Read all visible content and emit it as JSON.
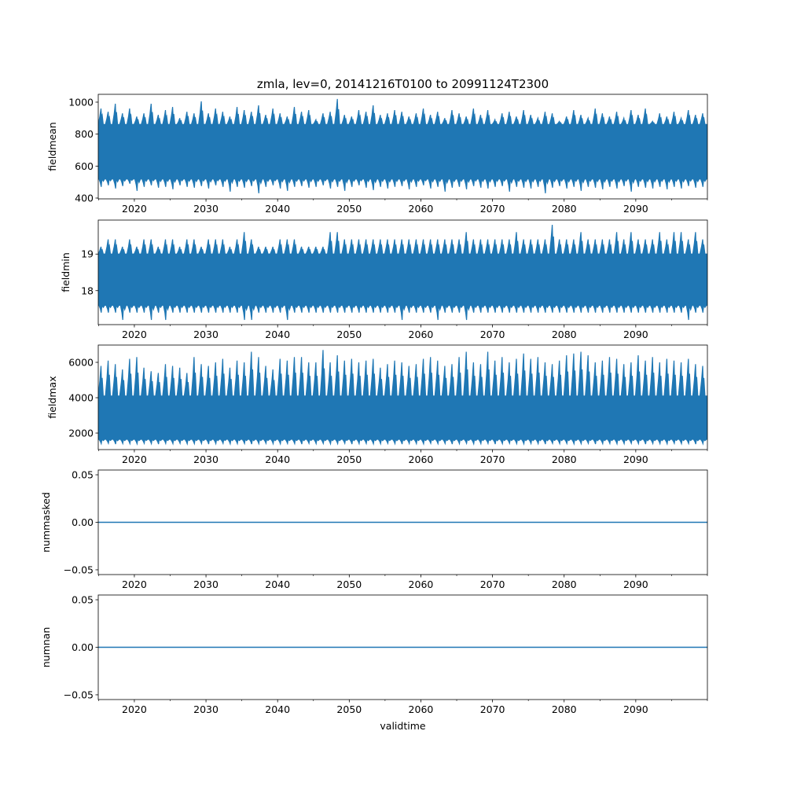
{
  "chart_data": [
    {
      "type": "line",
      "title": "zmla, lev=0, 20141216T0100 to 20991124T2300",
      "ylabel": "fieldmean",
      "xlabel": "",
      "xlim": [
        2014.96,
        2100.0
      ],
      "ylim": [
        395,
        1049
      ],
      "y_ticks": [
        {
          "v": 400,
          "label": "400"
        },
        {
          "v": 600,
          "label": "600"
        },
        {
          "v": 800,
          "label": "800"
        },
        {
          "v": 1000,
          "label": "1000"
        }
      ],
      "envelope": {
        "start_year": 2015,
        "core_high": 860,
        "core_low": 520,
        "annual_max": [
          960,
          940,
          990,
          930,
          960,
          910,
          930,
          990,
          920,
          950,
          970,
          900,
          940,
          930,
          1005,
          930,
          960,
          940,
          910,
          970,
          950,
          940,
          980,
          920,
          960,
          930,
          910,
          970,
          940,
          950,
          890,
          930,
          940,
          1020,
          920,
          910,
          950,
          940,
          980,
          920,
          930,
          950,
          940,
          910,
          930,
          960,
          920,
          940,
          900,
          950,
          930,
          910,
          960,
          920,
          950,
          890,
          930,
          940,
          910,
          950,
          920,
          900,
          940,
          930,
          880,
          910,
          950,
          920,
          900,
          960,
          930,
          910,
          940,
          900,
          950,
          920,
          960,
          880,
          930,
          910,
          940,
          900,
          950,
          920,
          930
        ],
        "annual_min": [
          470,
          480,
          460,
          475,
          490,
          445,
          470,
          480,
          465,
          470,
          455,
          480,
          470,
          465,
          475,
          460,
          480,
          470,
          440,
          470,
          465,
          475,
          430,
          470,
          480,
          460,
          445,
          470,
          475,
          465,
          470,
          480,
          460,
          470,
          445,
          470,
          480,
          465,
          450,
          470,
          460,
          470,
          475,
          455,
          470,
          480,
          460,
          470,
          440,
          465,
          470,
          455,
          475,
          465,
          460,
          470,
          475,
          440,
          470,
          465,
          460,
          470,
          430,
          465,
          475,
          460,
          470,
          445,
          470,
          465,
          455,
          470,
          460,
          475,
          440,
          470,
          465,
          460,
          470,
          455,
          470,
          460,
          475,
          465,
          470
        ]
      }
    },
    {
      "type": "line",
      "ylabel": "fieldmin",
      "xlim": [
        2014.96,
        2100.0
      ],
      "ylim": [
        17.07,
        19.93
      ],
      "y_ticks": [
        {
          "v": 18,
          "label": "18"
        },
        {
          "v": 19,
          "label": "19"
        }
      ],
      "envelope": {
        "start_year": 2015,
        "core_high": 19.0,
        "core_low": 17.6,
        "annual_max": [
          19.2,
          19.4,
          19.4,
          19.2,
          19.4,
          19.2,
          19.4,
          19.4,
          19.2,
          19.4,
          19.4,
          19.2,
          19.4,
          19.4,
          19.2,
          19.4,
          19.4,
          19.4,
          19.2,
          19.4,
          19.6,
          19.4,
          19.2,
          19.2,
          19.2,
          19.4,
          19.4,
          19.4,
          19.2,
          19.2,
          19.2,
          19.2,
          19.6,
          19.6,
          19.4,
          19.4,
          19.4,
          19.4,
          19.4,
          19.4,
          19.4,
          19.4,
          19.4,
          19.4,
          19.4,
          19.4,
          19.4,
          19.4,
          19.4,
          19.4,
          19.4,
          19.6,
          19.4,
          19.4,
          19.4,
          19.4,
          19.4,
          19.4,
          19.6,
          19.4,
          19.4,
          19.4,
          19.4,
          19.8,
          19.4,
          19.4,
          19.4,
          19.6,
          19.4,
          19.4,
          19.4,
          19.4,
          19.6,
          19.4,
          19.6,
          19.4,
          19.4,
          19.4,
          19.6,
          19.4,
          19.6,
          19.6,
          19.4,
          19.6,
          19.4
        ],
        "annual_min": [
          17.4,
          17.4,
          17.4,
          17.2,
          17.4,
          17.4,
          17.4,
          17.2,
          17.4,
          17.2,
          17.4,
          17.4,
          17.4,
          17.4,
          17.4,
          17.4,
          17.4,
          17.4,
          17.4,
          17.4,
          17.2,
          17.2,
          17.4,
          17.4,
          17.4,
          17.4,
          17.2,
          17.4,
          17.4,
          17.4,
          17.4,
          17.4,
          17.4,
          17.4,
          17.4,
          17.4,
          17.4,
          17.4,
          17.4,
          17.4,
          17.4,
          17.4,
          17.2,
          17.4,
          17.4,
          17.4,
          17.4,
          17.2,
          17.4,
          17.4,
          17.4,
          17.2,
          17.4,
          17.4,
          17.4,
          17.4,
          17.4,
          17.4,
          17.4,
          17.4,
          17.4,
          17.4,
          17.4,
          17.4,
          17.4,
          17.4,
          17.4,
          17.4,
          17.4,
          17.4,
          17.4,
          17.4,
          17.4,
          17.4,
          17.4,
          17.4,
          17.4,
          17.4,
          17.4,
          17.4,
          17.4,
          17.4,
          17.2,
          17.4,
          17.4
        ]
      }
    },
    {
      "type": "line",
      "ylabel": "fieldmax",
      "xlim": [
        2014.96,
        2100.0
      ],
      "ylim": [
        1067,
        6978
      ],
      "y_ticks": [
        {
          "v": 2000,
          "label": "2000"
        },
        {
          "v": 4000,
          "label": "4000"
        },
        {
          "v": 6000,
          "label": "6000"
        }
      ],
      "envelope": {
        "start_year": 2015,
        "core_high": 4100,
        "core_low": 1650,
        "annual_max": [
          5800,
          6100,
          5900,
          5600,
          6200,
          6300,
          5700,
          5500,
          5400,
          5900,
          5800,
          5700,
          5400,
          6300,
          5900,
          5800,
          6000,
          6200,
          5700,
          6100,
          6000,
          6600,
          6300,
          5800,
          5600,
          6200,
          6100,
          6300,
          6300,
          6000,
          6000,
          6700,
          6000,
          6400,
          6100,
          6200,
          6000,
          6100,
          6200,
          5700,
          5900,
          6100,
          6000,
          5800,
          5900,
          6200,
          6300,
          6100,
          5800,
          5900,
          6300,
          6600,
          6000,
          5900,
          6600,
          6100,
          6300,
          6000,
          6200,
          6500,
          6200,
          6300,
          6000,
          5900,
          6100,
          6400,
          6500,
          6600,
          6400,
          6000,
          6100,
          6300,
          6200,
          5900,
          6000,
          6400,
          6100,
          6300,
          6000,
          6200,
          6100,
          6000,
          6200,
          5900,
          5800
        ],
        "annual_min": [
          1400,
          1420,
          1380,
          1410,
          1400,
          1390,
          1420,
          1400,
          1380,
          1410,
          1400,
          1420,
          1390,
          1400,
          1410,
          1380,
          1400,
          1420,
          1390,
          1400,
          1410,
          1380,
          1400,
          1420,
          1400,
          1390,
          1410,
          1400,
          1380,
          1420,
          1400,
          1410,
          1390,
          1400,
          1420,
          1380,
          1400,
          1410,
          1390,
          1400,
          1420,
          1400,
          1380,
          1410,
          1400,
          1390,
          1420,
          1400,
          1410,
          1380,
          1400,
          1420,
          1390,
          1400,
          1410,
          1380,
          1400,
          1420,
          1400,
          1390,
          1410,
          1400,
          1380,
          1420,
          1400,
          1410,
          1390,
          1400,
          1420,
          1380,
          1400,
          1410,
          1390,
          1400,
          1420,
          1400,
          1380,
          1410,
          1400,
          1390,
          1420,
          1400,
          1410,
          1380,
          1400
        ]
      }
    },
    {
      "type": "line",
      "ylabel": "nummasked",
      "xlim": [
        2014.96,
        2100.0
      ],
      "ylim": [
        -0.055,
        0.055
      ],
      "y_ticks": [
        {
          "v": -0.05,
          "label": "−0.05"
        },
        {
          "v": 0,
          "label": "0.00"
        },
        {
          "v": 0.05,
          "label": "0.05"
        }
      ],
      "constant_value": 0
    },
    {
      "type": "line",
      "ylabel": "numnan",
      "xlabel": "validtime",
      "xlim": [
        2014.96,
        2100.0
      ],
      "ylim": [
        -0.055,
        0.055
      ],
      "y_ticks": [
        {
          "v": -0.05,
          "label": "−0.05"
        },
        {
          "v": 0,
          "label": "0.00"
        },
        {
          "v": 0.05,
          "label": "0.05"
        }
      ],
      "constant_value": 0
    }
  ],
  "x_ticks": {
    "major": [
      {
        "v": 2020,
        "label": "2020"
      },
      {
        "v": 2030,
        "label": "2030"
      },
      {
        "v": 2040,
        "label": "2040"
      },
      {
        "v": 2050,
        "label": "2050"
      },
      {
        "v": 2060,
        "label": "2060"
      },
      {
        "v": 2070,
        "label": "2070"
      },
      {
        "v": 2080,
        "label": "2080"
      },
      {
        "v": 2090,
        "label": "2090"
      }
    ],
    "minor": [
      2015,
      2025,
      2035,
      2045,
      2055,
      2065,
      2075,
      2085,
      2095
    ]
  },
  "colors": {
    "series": "#1f77b4",
    "axes": "#000000"
  }
}
